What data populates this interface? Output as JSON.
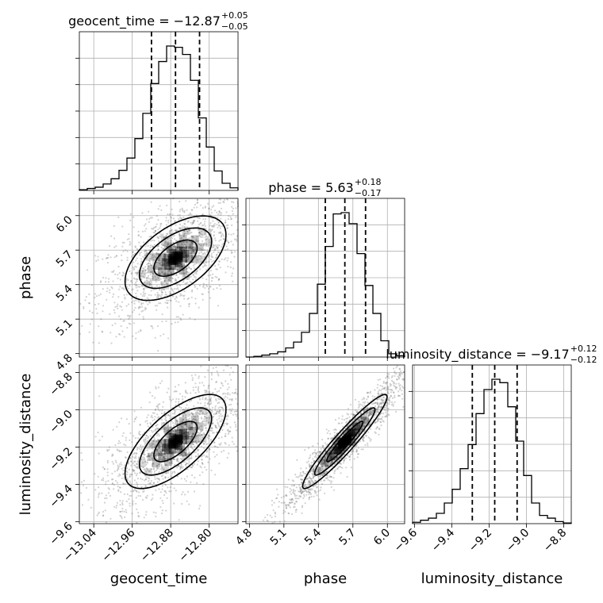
{
  "chart_data": {
    "type": "corner",
    "parameters": [
      "geocent_time",
      "phase",
      "luminosity_distance"
    ],
    "ranges": {
      "geocent_time": [
        -13.07,
        -12.74
      ],
      "phase": [
        4.77,
        6.15
      ],
      "luminosity_distance": [
        -9.61,
        -8.76
      ]
    },
    "ticks": {
      "geocent_time": [
        "−13.04",
        "−12.96",
        "−12.88",
        "−12.80"
      ],
      "phase": [
        "4.8",
        "5.1",
        "5.4",
        "5.7",
        "6.0"
      ],
      "luminosity_distance": [
        "−9.6",
        "−9.4",
        "−9.2",
        "−9.0",
        "−8.8"
      ]
    },
    "tick_values": {
      "geocent_time": [
        -13.04,
        -12.96,
        -12.88,
        -12.8
      ],
      "phase": [
        4.8,
        5.1,
        5.4,
        5.7,
        6.0
      ],
      "luminosity_distance": [
        -9.6,
        -9.4,
        -9.2,
        -9.0,
        -8.8
      ]
    },
    "titles": [
      {
        "param": "geocent_time",
        "main": "geocent_time = −12.87",
        "sup": "+0.05",
        "sub": "−0.05"
      },
      {
        "param": "phase",
        "main": "phase = 5.63",
        "sup": "+0.18",
        "sub": "−0.17"
      },
      {
        "param": "luminosity_distance",
        "main": "luminosity_distance = −9.17",
        "sup": "+0.12",
        "sub": "−0.12"
      }
    ],
    "quantiles": {
      "geocent_time": [
        -12.92,
        -12.87,
        -12.82
      ],
      "phase": [
        5.46,
        5.63,
        5.81
      ],
      "luminosity_distance": [
        -9.29,
        -9.17,
        -9.05
      ]
    },
    "histograms": {
      "geocent_time": {
        "edges_start": -13.07,
        "bin_width": 0.0165,
        "counts": [
          1,
          3,
          5,
          10,
          18,
          31,
          50,
          80,
          119,
          165,
          199,
          223,
          221,
          210,
          170,
          112,
          67,
          30,
          11,
          4
        ]
      },
      "phase": {
        "edges_start": 4.77,
        "bin_width": 0.069,
        "counts": [
          0,
          1,
          3,
          5,
          8,
          14,
          23,
          38,
          67,
          112,
          170,
          220,
          222,
          205,
          159,
          110,
          67,
          25,
          5,
          2
        ]
      },
      "luminosity_distance": {
        "edges_start": -9.61,
        "bin_width": 0.0425,
        "counts": [
          2,
          5,
          8,
          15,
          30,
          50,
          80,
          115,
          160,
          195,
          210,
          205,
          170,
          120,
          70,
          30,
          12,
          8,
          3,
          1
        ]
      }
    },
    "correlations": {
      "phase|geocent_time": 0.55,
      "luminosity_distance|geocent_time": 0.68,
      "luminosity_distance|phase": 0.95
    },
    "contour_levels": [
      0.39,
      0.86,
      1.0
    ],
    "grid": true,
    "xlabels": [
      "geocent_time",
      "phase",
      "luminosity_distance"
    ],
    "ylabels": [
      "",
      "phase",
      "luminosity_distance"
    ]
  }
}
